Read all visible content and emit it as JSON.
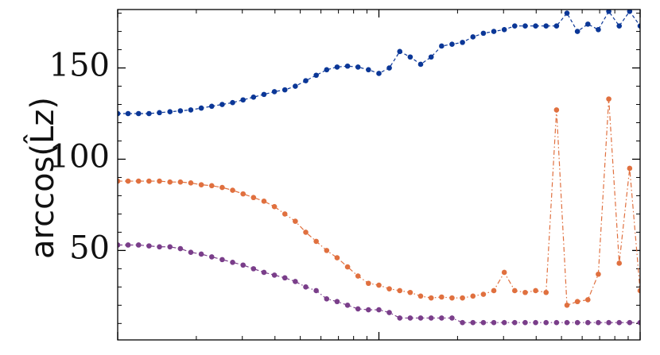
{
  "chart_data": {
    "type": "line",
    "y_label": "arccos(L̂z)",
    "log_x": true,
    "xlim": [
      1,
      100
    ],
    "xticks": [
      1,
      10,
      100
    ],
    "xticks_minor": [
      2,
      3,
      4,
      5,
      6,
      7,
      8,
      9,
      20,
      30,
      40,
      50,
      60,
      70,
      80,
      90
    ],
    "ylim": [
      1,
      182
    ],
    "yticks": [
      50,
      100,
      150
    ],
    "yticks_minor": [
      10,
      20,
      30,
      40,
      60,
      70,
      80,
      90,
      110,
      120,
      130,
      140,
      160,
      170,
      180
    ],
    "x": [
      1,
      1.096,
      1.202,
      1.318,
      1.445,
      1.585,
      1.738,
      1.905,
      2.089,
      2.291,
      2.512,
      2.754,
      3.02,
      3.311,
      3.631,
      3.981,
      4.365,
      4.786,
      5.248,
      5.754,
      6.31,
      6.918,
      7.586,
      8.318,
      9.12,
      10,
      10.96,
      12.02,
      13.18,
      14.45,
      15.85,
      17.38,
      19.05,
      20.89,
      22.91,
      25.12,
      27.54,
      30.2,
      33.11,
      36.31,
      39.81,
      43.65,
      47.86,
      52.48,
      57.54,
      63.1,
      69.18,
      75.86,
      83.18,
      91.2,
      100
    ],
    "series": [
      {
        "color": "#0b3797",
        "dash": "4,3",
        "values": [
          125,
          125,
          125,
          125,
          125.5,
          126,
          126.5,
          127,
          128,
          129,
          130,
          131,
          132.5,
          134,
          135.5,
          137,
          138,
          140,
          143,
          146,
          149,
          150.5,
          151,
          150.5,
          149,
          147,
          150,
          159,
          156,
          152,
          156,
          162,
          163,
          164,
          167,
          169,
          170,
          171,
          173,
          173,
          173,
          173,
          173,
          180,
          170,
          174,
          171,
          181,
          173,
          181,
          173
        ]
      },
      {
        "color": "#e0703f",
        "dash": "6,3,1.5,3",
        "values": [
          88,
          88,
          88,
          88,
          88,
          87.5,
          87.5,
          87,
          86,
          85.5,
          84.5,
          83,
          81,
          79,
          77,
          74,
          70,
          66,
          60,
          55,
          50,
          46,
          41,
          36,
          32,
          31,
          29,
          28,
          27,
          25,
          24,
          24.5,
          24,
          24,
          25,
          26,
          28,
          38,
          28,
          27,
          28,
          27,
          127,
          20,
          22,
          23,
          37,
          133,
          43,
          95,
          28
        ]
      },
      {
        "color": "#7a3e8a",
        "dash": "6,3,1.5,3",
        "values": [
          53,
          53,
          53,
          52.5,
          52,
          52,
          51,
          49,
          48,
          46.5,
          45,
          43.5,
          42,
          40,
          38,
          36.5,
          35,
          33,
          30,
          28,
          23.5,
          22,
          20,
          18,
          17.5,
          17.5,
          16,
          13,
          13,
          13,
          13,
          13,
          13,
          10.5,
          10.5,
          10.5,
          10.5,
          10.5,
          10.5,
          10.5,
          10.5,
          10.5,
          10.5,
          10.5,
          10.5,
          10.5,
          10.5,
          10.5,
          10.5,
          10.5,
          10.5
        ]
      }
    ]
  }
}
